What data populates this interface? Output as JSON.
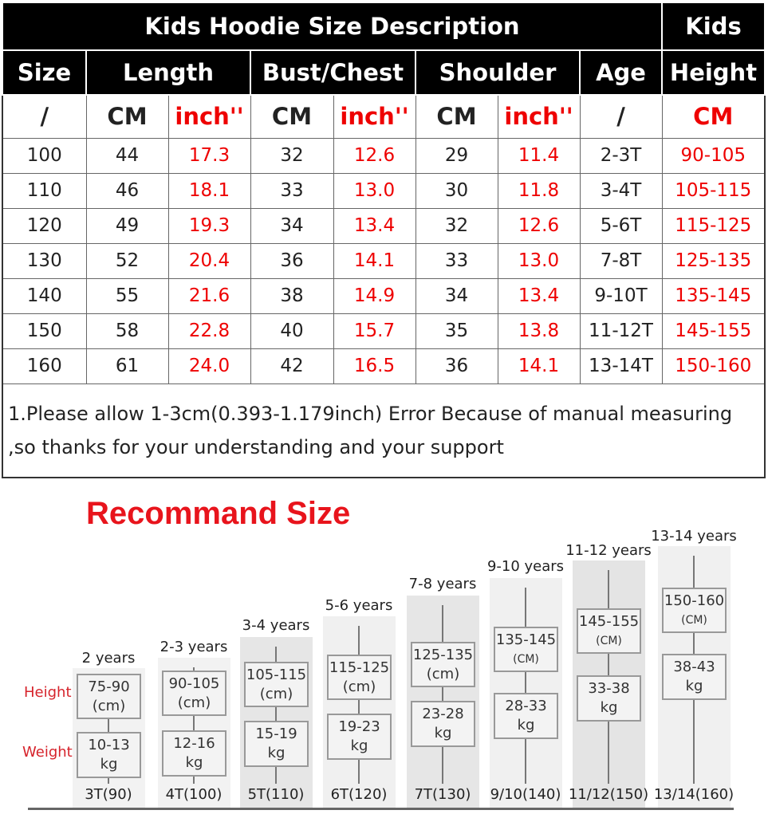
{
  "table": {
    "title": "Kids Hoodie Size Description",
    "kids": "Kids",
    "headers": [
      "Size",
      "Length",
      "Bust/Chest",
      "Shoulder",
      "Age",
      "Height"
    ],
    "units": [
      "/",
      "CM",
      "inch''",
      "CM",
      "inch''",
      "CM",
      "inch''",
      "/",
      "CM"
    ],
    "rows": [
      [
        "100",
        "44",
        "17.3",
        "32",
        "12.6",
        "29",
        "11.4",
        "2-3T",
        "90-105"
      ],
      [
        "110",
        "46",
        "18.1",
        "33",
        "13.0",
        "30",
        "11.8",
        "3-4T",
        "105-115"
      ],
      [
        "120",
        "49",
        "19.3",
        "34",
        "13.4",
        "32",
        "12.6",
        "5-6T",
        "115-125"
      ],
      [
        "130",
        "52",
        "20.4",
        "36",
        "14.1",
        "33",
        "13.0",
        "7-8T",
        "125-135"
      ],
      [
        "140",
        "55",
        "21.6",
        "38",
        "14.9",
        "34",
        "13.4",
        "9-10T",
        "135-145"
      ],
      [
        "150",
        "58",
        "22.8",
        "40",
        "15.7",
        "35",
        "13.8",
        "11-12T",
        "145-155"
      ],
      [
        "160",
        "61",
        "24.0",
        "42",
        "16.5",
        "36",
        "14.1",
        "13-14T",
        "150-160"
      ]
    ],
    "note_line1": "1.Please allow 1-3cm(0.393-1.179inch) Error Because of manual measuring",
    "note_line2": ",so thanks for your understanding and your support",
    "accent": "#e00000"
  },
  "recommend": {
    "title": "Recommand Size",
    "height_label": "Height",
    "weight_label": "Weight",
    "columns": [
      {
        "age": "2 years",
        "height": "75-90",
        "hunit": "(cm)",
        "weight": "10-13",
        "wunit": "kg",
        "size": "3T(90)"
      },
      {
        "age": "2-3 years",
        "height": "90-105",
        "hunit": "(cm)",
        "weight": "12-16",
        "wunit": "kg",
        "size": "4T(100)"
      },
      {
        "age": "3-4 years",
        "height": "105-115",
        "hunit": "(cm)",
        "weight": "15-19",
        "wunit": "kg",
        "size": "5T(110)"
      },
      {
        "age": "5-6 years",
        "height": "115-125",
        "hunit": "(cm)",
        "weight": "19-23",
        "wunit": "kg",
        "size": "6T(120)"
      },
      {
        "age": "7-8 years",
        "height": "125-135",
        "hunit": "(cm)",
        "weight": "23-28",
        "wunit": "kg",
        "size": "7T(130)"
      },
      {
        "age": "9-10 years",
        "height": "135-145",
        "hunit": "(CM)",
        "weight": "28-33",
        "wunit": "kg",
        "size": "9/10(140)"
      },
      {
        "age": "11-12 years",
        "height": "145-155",
        "hunit": "(CM)",
        "weight": "33-38",
        "wunit": "kg",
        "size": "11/12(150)"
      },
      {
        "age": "13-14 years",
        "height": "150-160",
        "hunit": "(CM)",
        "weight": "38-43",
        "wunit": "kg",
        "size": "13/14(160)"
      }
    ],
    "title_color": "#e8141c"
  }
}
